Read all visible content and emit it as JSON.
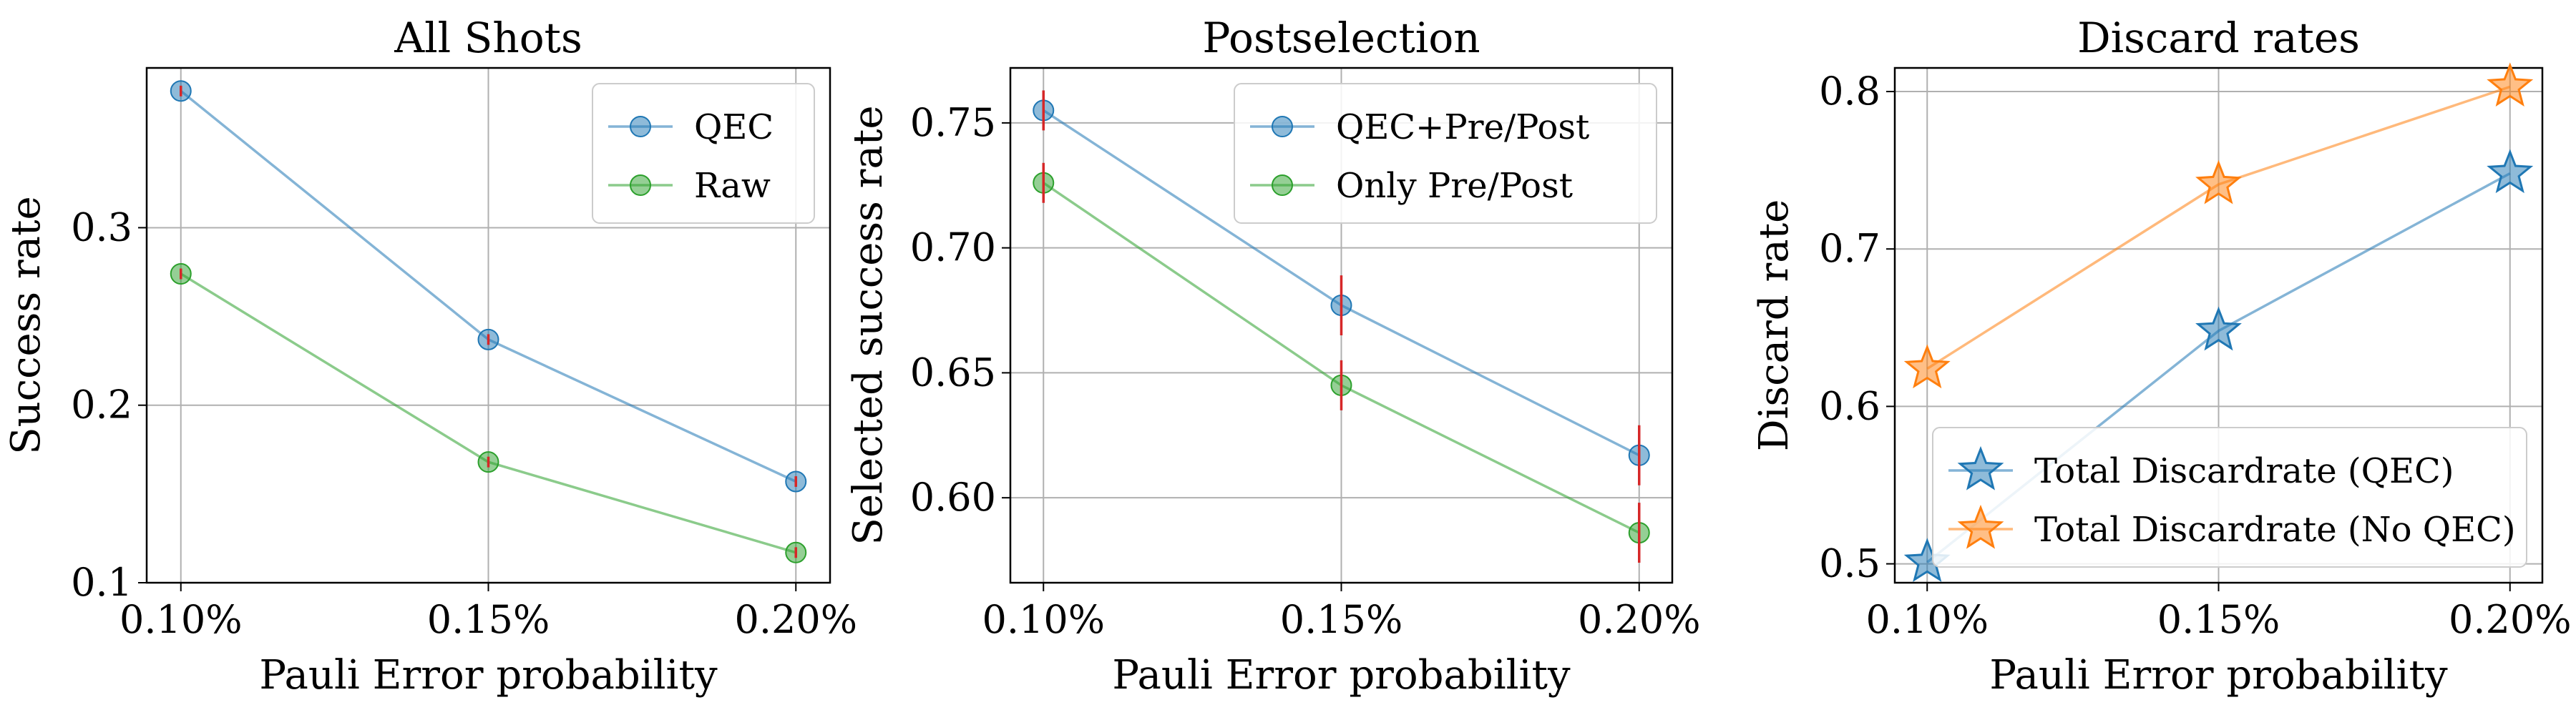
{
  "figure": {
    "colors": {
      "blue": "#1f77b4",
      "green": "#2ca02c",
      "orange": "#ff7f0e",
      "error_bar": "#d62728",
      "grid": "#b0b0b0"
    }
  },
  "chart_data": [
    {
      "type": "line",
      "title": "All Shots",
      "xlabel": "Pauli Error probability",
      "ylabel": "Success rate",
      "x": [
        0.1,
        0.15,
        0.2
      ],
      "xticklabels": [
        "0.10%",
        "0.15%",
        "0.20%"
      ],
      "ylim": [
        0.1,
        0.39
      ],
      "yticks": [
        0.1,
        0.2,
        0.3
      ],
      "yticklabels": [
        "0.1",
        "0.2",
        "0.3"
      ],
      "grid": true,
      "legend_loc": "upper right",
      "marker": "circle",
      "series": [
        {
          "name": "QEC",
          "color": "#1f77b4",
          "values": [
            0.377,
            0.237,
            0.157
          ],
          "err": [
            0.003,
            0.003,
            0.003
          ]
        },
        {
          "name": "Raw",
          "color": "#2ca02c",
          "values": [
            0.274,
            0.168,
            0.117
          ],
          "err": [
            0.003,
            0.003,
            0.003
          ]
        }
      ]
    },
    {
      "type": "line",
      "title": "Postselection",
      "xlabel": "Pauli Error probability",
      "ylabel": "Selected success rate",
      "x": [
        0.1,
        0.15,
        0.2
      ],
      "xticklabels": [
        "0.10%",
        "0.15%",
        "0.20%"
      ],
      "ylim": [
        0.566,
        0.772
      ],
      "yticks": [
        0.6,
        0.65,
        0.7,
        0.75
      ],
      "yticklabels": [
        "0.60",
        "0.65",
        "0.70",
        "0.75"
      ],
      "grid": true,
      "legend_loc": "upper right",
      "marker": "circle",
      "series": [
        {
          "name": "QEC+Pre/Post",
          "color": "#1f77b4",
          "values": [
            0.755,
            0.677,
            0.617
          ],
          "err": [
            0.008,
            0.012,
            0.012
          ]
        },
        {
          "name": "Only Pre/Post",
          "color": "#2ca02c",
          "values": [
            0.726,
            0.645,
            0.586
          ],
          "err": [
            0.008,
            0.01,
            0.012
          ]
        }
      ]
    },
    {
      "type": "line",
      "title": "Discard rates",
      "xlabel": "Pauli Error probability",
      "ylabel": "Discard rate",
      "x": [
        0.1,
        0.15,
        0.2
      ],
      "xticklabels": [
        "0.10%",
        "0.15%",
        "0.20%"
      ],
      "ylim": [
        0.488,
        0.815
      ],
      "yticks": [
        0.5,
        0.6,
        0.7,
        0.8
      ],
      "yticklabels": [
        "0.5",
        "0.6",
        "0.7",
        "0.8"
      ],
      "grid": true,
      "legend_loc": "lower right",
      "marker": "star",
      "series": [
        {
          "name": "Total Discardrate (QEC)",
          "color": "#1f77b4",
          "values": [
            0.501,
            0.648,
            0.748
          ]
        },
        {
          "name": "Total Discardrate (No QEC)",
          "color": "#ff7f0e",
          "values": [
            0.624,
            0.741,
            0.803
          ]
        }
      ]
    }
  ]
}
